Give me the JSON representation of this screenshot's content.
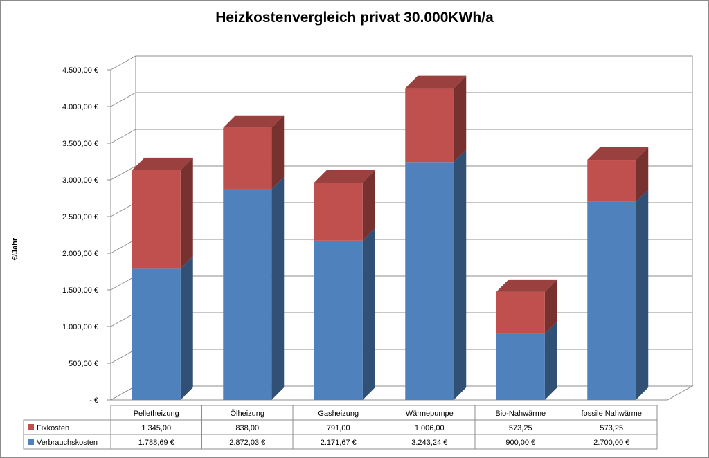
{
  "chart_data": {
    "type": "bar",
    "stacked": true,
    "three_d": true,
    "title": "Heizkostenvergleich privat 30.000KWh/a",
    "ylabel": "€/Jahr",
    "xlabel": "",
    "ylim": [
      0,
      4500
    ],
    "grid": true,
    "legend": "data-table",
    "yticks": [
      "-  €",
      "500,00 €",
      "1.000,00 €",
      "1.500,00 €",
      "2.000,00 €",
      "2.500,00 €",
      "3.000,00 €",
      "3.500,00 €",
      "4.000,00 €",
      "4.500,00 €"
    ],
    "categories": [
      "Pelletheizung",
      "Ölheizung",
      "Gasheizung",
      "Wärmepumpe",
      "Bio-Nahwärme",
      "fossile Nahwärme"
    ],
    "series": [
      {
        "name": "Verbrauchskosten",
        "color": "#4f81bd",
        "values": [
          1788.69,
          2872.03,
          2171.67,
          3243.24,
          900.0,
          2700.0
        ],
        "labels": [
          "1.788,69 €",
          "2.872,03 €",
          "2.171,67 €",
          "3.243,24 €",
          "900,00 €",
          "2.700,00 €"
        ]
      },
      {
        "name": "Fixkosten",
        "color": "#c0504d",
        "values": [
          1345.0,
          838.0,
          791.0,
          1006.0,
          573.25,
          573.25
        ],
        "labels": [
          "1.345,00",
          "838,00",
          "791,00",
          "1.006,00",
          "573,25",
          "573,25"
        ]
      }
    ]
  }
}
